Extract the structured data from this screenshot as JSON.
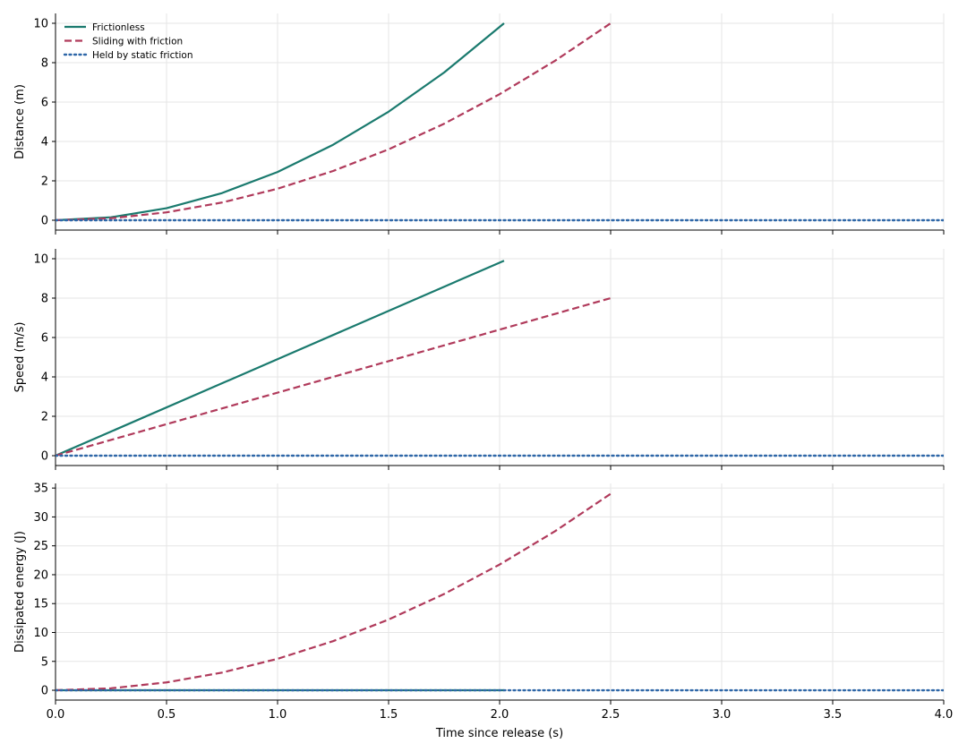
{
  "chart_data": {
    "type": "line",
    "shared_x": {
      "label": "Time since release (s)",
      "xlim": [
        0.0,
        4.0
      ],
      "ticks": [
        "0.0",
        "0.5",
        "1.0",
        "1.5",
        "2.0",
        "2.5",
        "3.0",
        "3.5",
        "4.0"
      ]
    },
    "grid": true,
    "legend": {
      "placement": "top-left",
      "entries": [
        "Frictionless",
        "Sliding with friction",
        "Held by static friction"
      ]
    },
    "colors": {
      "Frictionless": "#1a7a6e",
      "Sliding with friction": "#b03a5b",
      "Held by static friction": "#2e67a8"
    },
    "styles": {
      "Frictionless": "solid",
      "Sliding with friction": "dashed",
      "Held by static friction": "dotted"
    },
    "panels": [
      {
        "ylabel": "Distance (m)",
        "ylim": [
          -0.5,
          10.5
        ],
        "yticks": [
          0,
          2,
          4,
          6,
          8,
          10
        ],
        "series": [
          {
            "name": "Frictionless",
            "points": [
              [
                0.0,
                0.0
              ],
              [
                0.25,
                0.15
              ],
              [
                0.5,
                0.61
              ],
              [
                0.75,
                1.38
              ],
              [
                1.0,
                2.45
              ],
              [
                1.25,
                3.83
              ],
              [
                1.5,
                5.51
              ],
              [
                1.75,
                7.5
              ],
              [
                2.02,
                10.0
              ]
            ]
          },
          {
            "name": "Sliding with friction",
            "points": [
              [
                0.0,
                0.0
              ],
              [
                0.25,
                0.1
              ],
              [
                0.5,
                0.4
              ],
              [
                0.75,
                0.9
              ],
              [
                1.0,
                1.6
              ],
              [
                1.25,
                2.5
              ],
              [
                1.5,
                3.6
              ],
              [
                1.75,
                4.9
              ],
              [
                2.0,
                6.4
              ],
              [
                2.25,
                8.1
              ],
              [
                2.5,
                10.0
              ]
            ]
          },
          {
            "name": "Held by static friction",
            "points": [
              [
                0.0,
                0.0
              ],
              [
                4.0,
                0.0
              ]
            ]
          }
        ]
      },
      {
        "ylabel": "Speed (m/s)",
        "ylim": [
          -0.5,
          10.5
        ],
        "yticks": [
          0,
          2,
          4,
          6,
          8,
          10
        ],
        "series": [
          {
            "name": "Frictionless",
            "points": [
              [
                0.0,
                0.0
              ],
              [
                2.02,
                9.9
              ]
            ]
          },
          {
            "name": "Sliding with friction",
            "points": [
              [
                0.0,
                0.0
              ],
              [
                2.5,
                8.0
              ]
            ]
          },
          {
            "name": "Held by static friction",
            "points": [
              [
                0.0,
                0.0
              ],
              [
                4.0,
                0.0
              ]
            ]
          }
        ]
      },
      {
        "ylabel": "Dissipated energy (J)",
        "ylim": [
          -1.7,
          35.8
        ],
        "yticks": [
          0,
          5,
          10,
          15,
          20,
          25,
          30,
          35
        ],
        "series": [
          {
            "name": "Frictionless",
            "points": [
              [
                0.0,
                0.0
              ],
              [
                2.02,
                0.0
              ]
            ]
          },
          {
            "name": "Sliding with friction",
            "points": [
              [
                0.0,
                0.0
              ],
              [
                0.25,
                0.34
              ],
              [
                0.5,
                1.36
              ],
              [
                0.75,
                3.06
              ],
              [
                1.0,
                5.44
              ],
              [
                1.25,
                8.5
              ],
              [
                1.5,
                12.24
              ],
              [
                1.75,
                16.66
              ],
              [
                2.0,
                21.76
              ],
              [
                2.25,
                27.54
              ],
              [
                2.5,
                34.0
              ]
            ]
          },
          {
            "name": "Held by static friction",
            "points": [
              [
                0.0,
                0.0
              ],
              [
                4.0,
                0.0
              ]
            ]
          }
        ]
      }
    ]
  }
}
